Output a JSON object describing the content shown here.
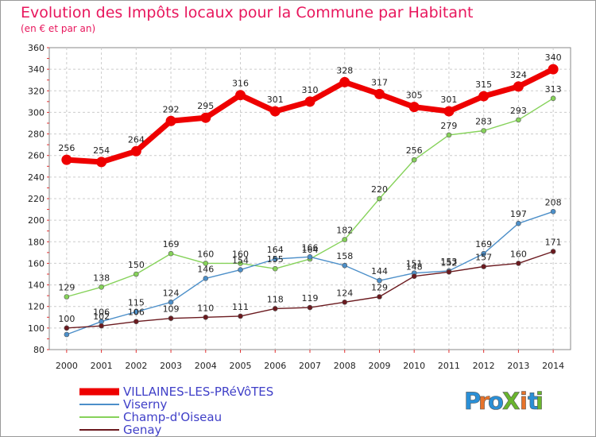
{
  "chart_data": {
    "type": "line",
    "title": "Evolution des Impôts locaux pour la Commune par Habitant",
    "subtitle": "(en € et par an)",
    "x": [
      "2000",
      "2001",
      "2002",
      "2003",
      "2004",
      "2005",
      "2006",
      "2007",
      "2008",
      "2009",
      "2010",
      "2011",
      "2012",
      "2013",
      "2014"
    ],
    "ylim": [
      80,
      360
    ],
    "yticks": [
      80,
      100,
      120,
      140,
      160,
      180,
      200,
      220,
      240,
      260,
      280,
      300,
      320,
      340,
      360
    ],
    "grid": true,
    "legend_position": "bottom-left",
    "series": [
      {
        "name": "VILLAINES-LES-PRéVôTES",
        "color": "#ee0000",
        "values": [
          256,
          254,
          264,
          292,
          295,
          316,
          301,
          310,
          328,
          317,
          305,
          301,
          315,
          324,
          340
        ]
      },
      {
        "name": "Viserny",
        "color": "#4c8fc9",
        "values": [
          94,
          106,
          115,
          124,
          146,
          154,
          164,
          166,
          158,
          144,
          151,
          153,
          169,
          197,
          208
        ]
      },
      {
        "name": "Champ-d'Oiseau",
        "color": "#86d25a",
        "values": [
          129,
          138,
          150,
          169,
          160,
          160,
          155,
          164,
          182,
          220,
          256,
          279,
          283,
          293,
          313
        ]
      },
      {
        "name": "Genay",
        "color": "#6b1a1f",
        "values": [
          100,
          102,
          106,
          109,
          110,
          111,
          118,
          119,
          124,
          129,
          148,
          152,
          157,
          160,
          171
        ]
      }
    ],
    "labels": {
      "VILLAINES-LES-PRéVôTES": [
        "256",
        "254",
        "264",
        "292",
        "295",
        "316",
        "301",
        "310",
        "328",
        "317",
        "305",
        "301",
        "315",
        "324",
        "340"
      ],
      "Viserny": [
        "",
        "106",
        "115",
        "124",
        "146",
        "154",
        "164",
        "166",
        "158",
        "144",
        "151",
        "153",
        "169",
        "197",
        "208"
      ],
      "Champ-d'Oiseau": [
        "129",
        "138",
        "150",
        "169",
        "160",
        "160",
        "155",
        "164",
        "182",
        "220",
        "256",
        "279",
        "283",
        "293",
        "313"
      ],
      "Genay": [
        "100",
        "102",
        "106",
        "109",
        "110",
        "111",
        "118",
        "119",
        "124",
        "129",
        "148",
        "152",
        "157",
        "160",
        "171"
      ]
    }
  },
  "logo": {
    "text": "ProXiti"
  }
}
